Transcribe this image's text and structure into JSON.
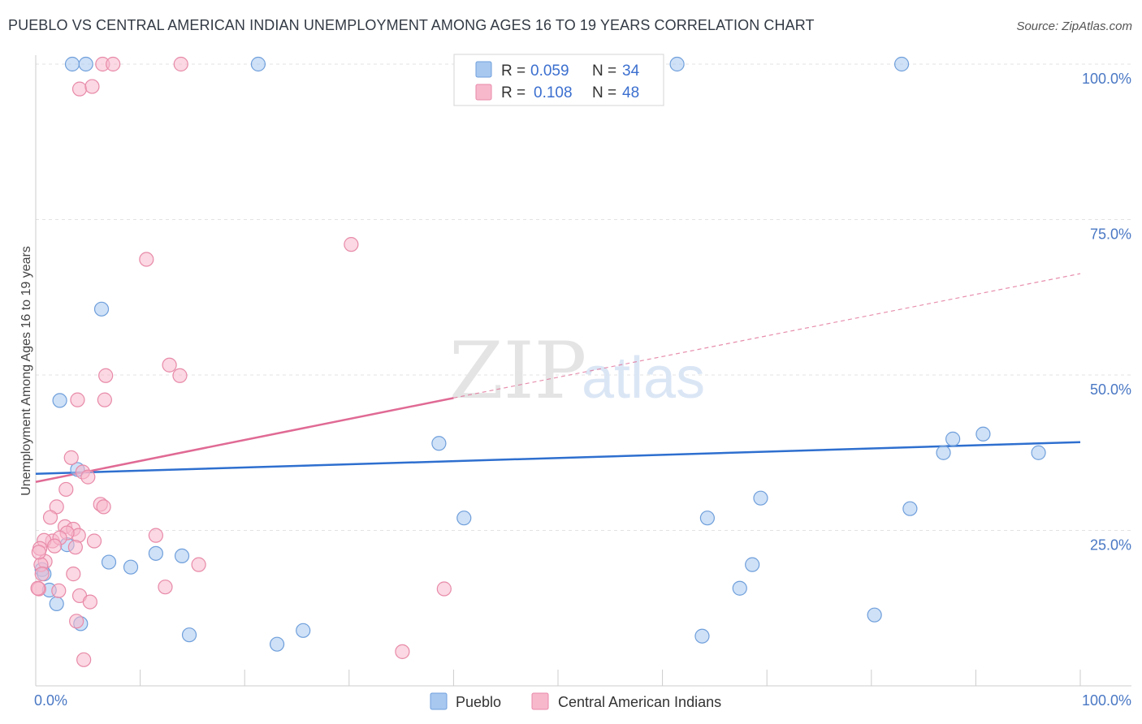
{
  "title": "PUEBLO VS CENTRAL AMERICAN INDIAN UNEMPLOYMENT AMONG AGES 16 TO 19 YEARS CORRELATION CHART",
  "source": "Source: ZipAtlas.com",
  "watermark": {
    "zip": "ZIP",
    "atlas": "atlas"
  },
  "legend_top": [
    {
      "r_label": "R =",
      "r_value": "0.059",
      "n_label": "N =",
      "n_value": "34",
      "color": "#a8c8f0"
    },
    {
      "r_label": "R =",
      "r_value": "0.108",
      "n_label": "N =",
      "n_value": "48",
      "color": "#f7b8cc"
    }
  ],
  "legend_bottom": [
    "Pueblo",
    "Central American Indians"
  ],
  "colors": {
    "blue_fill": "#a8c8f0",
    "blue_stroke": "#6f9fdb",
    "blue_line": "#2e6fcf",
    "pink_fill": "#f7b8cc",
    "pink_stroke": "#e88aa8",
    "pink_line": "#e06a94",
    "tick": "#4a78c4"
  },
  "chart_data": {
    "type": "scatter",
    "xlabel": "",
    "ylabel": "Unemployment Among Ages 16 to 19 years",
    "xlim": [
      0,
      100
    ],
    "ylim": [
      0,
      100
    ],
    "x_tick_labels": [
      "0.0%",
      "100.0%"
    ],
    "y_tick_labels": [
      {
        "value": 25,
        "label": "25.0%"
      },
      {
        "value": 50,
        "label": "50.0%"
      },
      {
        "value": 75,
        "label": "75.0%"
      },
      {
        "value": 100,
        "label": "100.0%"
      }
    ],
    "grid": true,
    "series": [
      {
        "name": "Pueblo",
        "points": [
          [
            3.5,
            100
          ],
          [
            4.8,
            100
          ],
          [
            21.3,
            100
          ],
          [
            61.4,
            100
          ],
          [
            82.9,
            100
          ],
          [
            6.3,
            60.6
          ],
          [
            2.3,
            45.9
          ],
          [
            4.0,
            34.8
          ],
          [
            3.0,
            22.7
          ],
          [
            7.0,
            19.9
          ],
          [
            9.1,
            19.1
          ],
          [
            11.5,
            21.3
          ],
          [
            14.0,
            20.9
          ],
          [
            0.6,
            18.7
          ],
          [
            0.8,
            18.0
          ],
          [
            1.3,
            15.4
          ],
          [
            2.0,
            13.2
          ],
          [
            4.3,
            10.0
          ],
          [
            14.7,
            8.2
          ],
          [
            23.1,
            6.7
          ],
          [
            25.6,
            8.9
          ],
          [
            38.6,
            39.0
          ],
          [
            41.0,
            27.0
          ],
          [
            63.8,
            8.0
          ],
          [
            64.3,
            27.0
          ],
          [
            67.4,
            15.7
          ],
          [
            68.6,
            19.5
          ],
          [
            69.4,
            30.2
          ],
          [
            80.3,
            11.4
          ],
          [
            83.7,
            28.5
          ],
          [
            86.9,
            37.5
          ],
          [
            87.8,
            39.7
          ],
          [
            90.7,
            40.5
          ],
          [
            96.0,
            37.5
          ]
        ]
      },
      {
        "name": "Central American Indians",
        "points": [
          [
            6.4,
            100
          ],
          [
            7.4,
            100
          ],
          [
            13.9,
            100
          ],
          [
            4.2,
            96.0
          ],
          [
            5.4,
            96.4
          ],
          [
            10.6,
            68.6
          ],
          [
            30.2,
            71.0
          ],
          [
            12.8,
            51.6
          ],
          [
            13.8,
            49.9
          ],
          [
            6.7,
            49.9
          ],
          [
            6.6,
            46.0
          ],
          [
            4.0,
            46.0
          ],
          [
            3.4,
            36.7
          ],
          [
            4.5,
            34.4
          ],
          [
            5.0,
            33.6
          ],
          [
            2.9,
            31.6
          ],
          [
            6.2,
            29.2
          ],
          [
            6.5,
            28.8
          ],
          [
            2.0,
            28.8
          ],
          [
            1.4,
            27.1
          ],
          [
            2.8,
            25.6
          ],
          [
            3.6,
            25.2
          ],
          [
            4.1,
            24.2
          ],
          [
            3.0,
            24.6
          ],
          [
            1.6,
            23.3
          ],
          [
            2.3,
            23.8
          ],
          [
            0.8,
            23.4
          ],
          [
            1.8,
            22.5
          ],
          [
            5.6,
            23.3
          ],
          [
            11.5,
            24.2
          ],
          [
            3.8,
            22.3
          ],
          [
            0.4,
            22.1
          ],
          [
            0.9,
            20.0
          ],
          [
            0.5,
            19.5
          ],
          [
            15.6,
            19.5
          ],
          [
            0.6,
            18.0
          ],
          [
            3.6,
            18.0
          ],
          [
            12.4,
            15.9
          ],
          [
            39.1,
            15.6
          ],
          [
            0.3,
            15.6
          ],
          [
            2.2,
            15.3
          ],
          [
            4.2,
            14.5
          ],
          [
            5.2,
            13.5
          ],
          [
            3.9,
            10.4
          ],
          [
            35.1,
            5.5
          ],
          [
            4.6,
            4.2
          ],
          [
            0.2,
            15.7
          ],
          [
            0.3,
            21.5
          ]
        ]
      }
    ],
    "trend_lines": [
      {
        "series": "Pueblo",
        "x": [
          0,
          100
        ],
        "y": [
          34.1,
          39.2
        ]
      },
      {
        "series": "Central American Indians",
        "x": [
          0,
          40
        ],
        "y": [
          32.8,
          46.3
        ],
        "dashed_extension_to": [
          100,
          66.3
        ]
      }
    ]
  }
}
